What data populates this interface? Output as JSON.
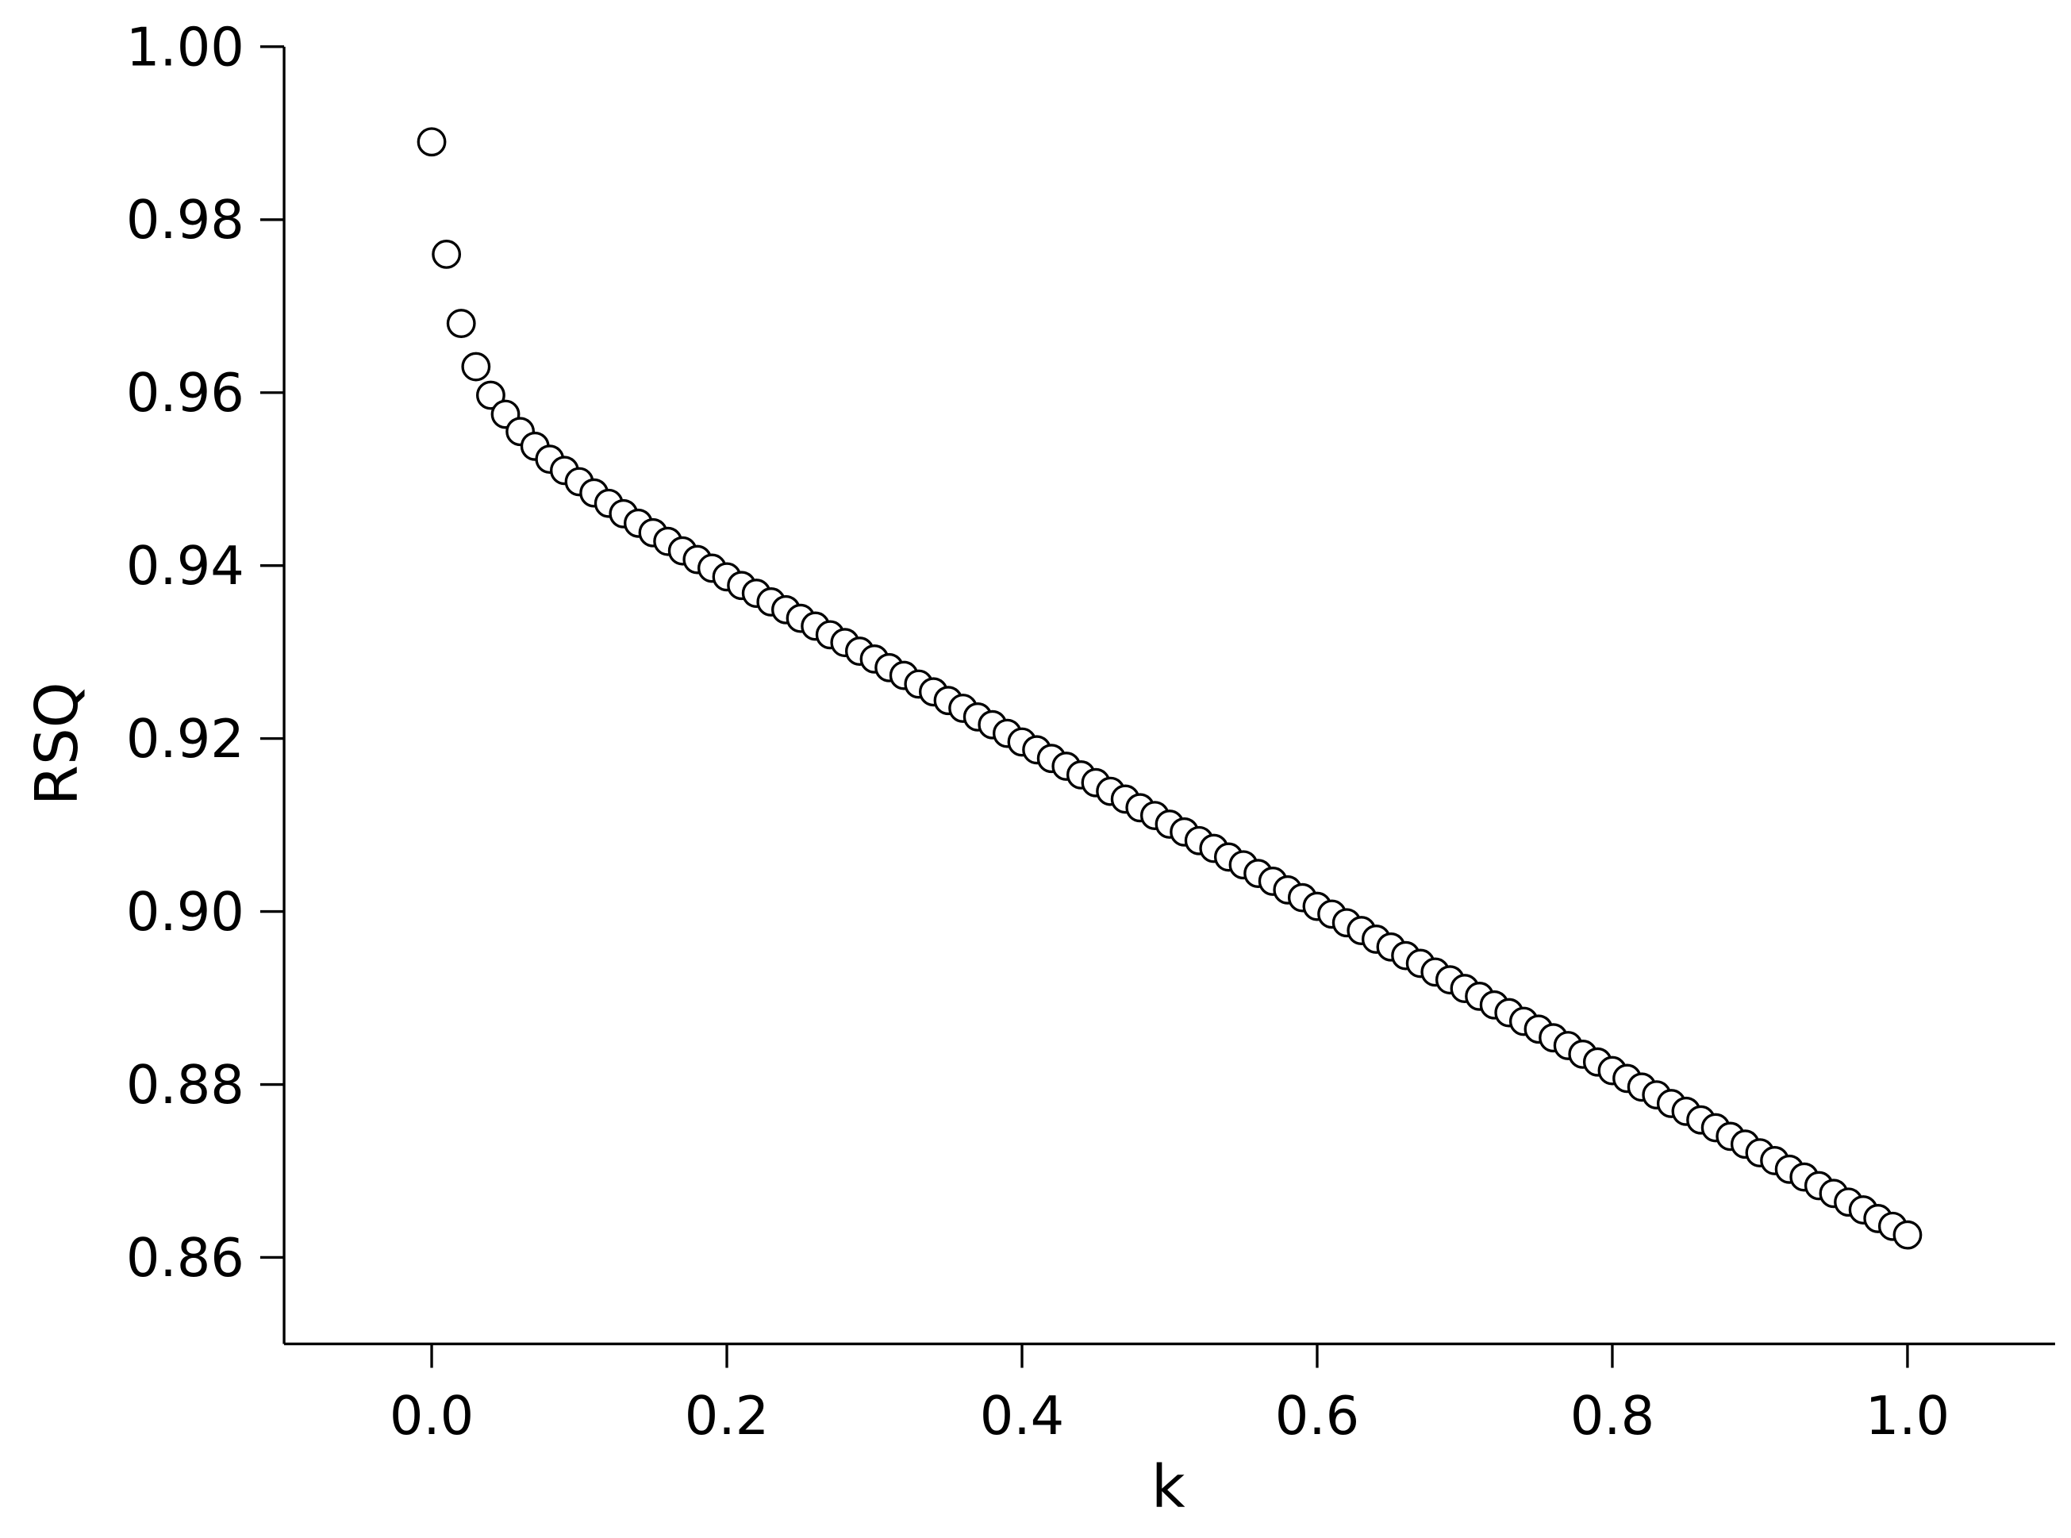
{
  "chart_data": {
    "type": "scatter",
    "x_label": "k",
    "y_label": "RSQ",
    "x": [
      0,
      0.01,
      0.02,
      0.03,
      0.04,
      0.05,
      0.06,
      0.07,
      0.08,
      0.09,
      0.1,
      0.11,
      0.12,
      0.13,
      0.14,
      0.15,
      0.16,
      0.17,
      0.18,
      0.19,
      0.2,
      0.21,
      0.22,
      0.23,
      0.24,
      0.25,
      0.26,
      0.27,
      0.28,
      0.29,
      0.3,
      0.31,
      0.32,
      0.33,
      0.34,
      0.35,
      0.36,
      0.37,
      0.38,
      0.39,
      0.4,
      0.41,
      0.42,
      0.43,
      0.44,
      0.45,
      0.46,
      0.47,
      0.48,
      0.49,
      0.5,
      0.51,
      0.52,
      0.53,
      0.54,
      0.55,
      0.56,
      0.57,
      0.58,
      0.59,
      0.6,
      0.61,
      0.62,
      0.63,
      0.64,
      0.65,
      0.66,
      0.67,
      0.68,
      0.69,
      0.7,
      0.71,
      0.72,
      0.73,
      0.74,
      0.75,
      0.76,
      0.77,
      0.78,
      0.79,
      0.8,
      0.81,
      0.82,
      0.83,
      0.84,
      0.85,
      0.86,
      0.87,
      0.88,
      0.89,
      0.9,
      0.91,
      0.92,
      0.93,
      0.94,
      0.95,
      0.96,
      0.97,
      0.98,
      0.99,
      1
    ],
    "values": [
      0.989,
      0.976,
      0.968,
      0.963,
      0.9597,
      0.9575,
      0.9555,
      0.9538,
      0.9523,
      0.951,
      0.9497,
      0.9484,
      0.9472,
      0.946,
      0.9449,
      0.9438,
      0.9428,
      0.9417,
      0.9407,
      0.9397,
      0.9387,
      0.9377,
      0.9368,
      0.9358,
      0.9349,
      0.9339,
      0.933,
      0.932,
      0.9311,
      0.9301,
      0.9292,
      0.9282,
      0.9273,
      0.9263,
      0.9254,
      0.9244,
      0.9235,
      0.9225,
      0.9216,
      0.9206,
      0.9196,
      0.9187,
      0.9177,
      0.9168,
      0.9158,
      0.9149,
      0.9139,
      0.913,
      0.912,
      0.9111,
      0.9101,
      0.9092,
      0.9082,
      0.9073,
      0.9063,
      0.9054,
      0.9044,
      0.9035,
      0.9025,
      0.9016,
      0.9006,
      0.8997,
      0.8987,
      0.8978,
      0.8968,
      0.8959,
      0.8949,
      0.894,
      0.893,
      0.8921,
      0.8911,
      0.8902,
      0.8892,
      0.8883,
      0.8873,
      0.8864,
      0.8854,
      0.8845,
      0.8835,
      0.8826,
      0.8816,
      0.8807,
      0.8797,
      0.8788,
      0.8778,
      0.8769,
      0.8759,
      0.875,
      0.874,
      0.8731,
      0.8721,
      0.8712,
      0.8702,
      0.8693,
      0.8683,
      0.8674,
      0.8664,
      0.8655,
      0.8645,
      0.8636,
      0.8626
    ],
    "color": "#000000",
    "xlim": [
      -0.1,
      1.1
    ],
    "ylim": [
      0.85,
      1.0
    ],
    "xticks": [
      {
        "value": 0,
        "label": "0.0"
      },
      {
        "value": 0.2,
        "label": "0.2"
      },
      {
        "value": 0.4,
        "label": "0.4"
      },
      {
        "value": 0.6,
        "label": "0.6"
      },
      {
        "value": 0.8,
        "label": "0.8"
      },
      {
        "value": 1,
        "label": "1.0"
      }
    ],
    "yticks": [
      {
        "value": 0.86,
        "label": "0.86"
      },
      {
        "value": 0.88,
        "label": "0.88"
      },
      {
        "value": 0.9,
        "label": "0.90"
      },
      {
        "value": 0.92,
        "label": "0.92"
      },
      {
        "value": 0.94,
        "label": "0.94"
      },
      {
        "value": 0.96,
        "label": "0.96"
      },
      {
        "value": 0.98,
        "label": "0.98"
      },
      {
        "value": 1,
        "label": "1.00"
      }
    ],
    "grid": false
  }
}
